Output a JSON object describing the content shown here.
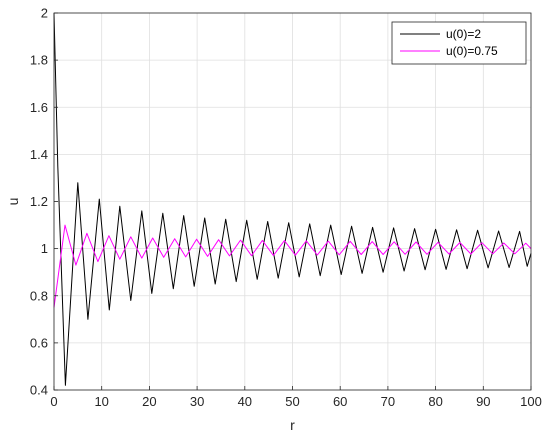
{
  "chart_data": {
    "type": "line",
    "title": "",
    "xlabel": "r",
    "ylabel": "u",
    "xlim": [
      0,
      100
    ],
    "ylim": [
      0.4,
      2
    ],
    "grid": true,
    "legend_position": "top-right",
    "x_ticks": [
      0,
      10,
      20,
      30,
      40,
      50,
      60,
      70,
      80,
      90,
      100
    ],
    "x_tick_labels": [
      "0",
      "10",
      "20",
      "30",
      "40",
      "50",
      "60",
      "70",
      "80",
      "90",
      "100"
    ],
    "y_ticks": [
      0.4,
      0.6,
      0.8,
      1.0,
      1.2,
      1.4,
      1.6,
      1.8,
      2.0
    ],
    "y_tick_labels": [
      "0.4",
      "0.6",
      "0.8",
      "1",
      "1.2",
      "1.4",
      "1.6",
      "1.8",
      "2"
    ],
    "series": [
      {
        "name": "u(0)=2",
        "color": "#000000",
        "x": [
          0,
          0.8,
          2.4,
          5.0,
          7.1,
          9.5,
          11.6,
          13.8,
          16.1,
          18.4,
          20.5,
          22.8,
          25.0,
          27.2,
          29.4,
          31.6,
          33.8,
          36.0,
          38.2,
          40.4,
          42.6,
          44.8,
          47.0,
          49.2,
          51.4,
          53.6,
          55.8,
          58.0,
          60.2,
          62.4,
          64.6,
          66.8,
          69.0,
          71.2,
          73.4,
          75.6,
          77.8,
          80.0,
          82.2,
          84.4,
          86.6,
          88.8,
          91.0,
          93.2,
          95.4,
          97.6,
          99.2,
          100
        ],
        "y": [
          2.0,
          1.35,
          0.42,
          1.28,
          0.7,
          1.21,
          0.74,
          1.18,
          0.78,
          1.16,
          0.81,
          1.15,
          0.83,
          1.14,
          0.84,
          1.13,
          0.85,
          1.125,
          0.86,
          1.12,
          0.87,
          1.115,
          0.875,
          1.11,
          0.88,
          1.105,
          0.885,
          1.1,
          0.89,
          1.095,
          0.895,
          1.09,
          0.9,
          1.088,
          0.905,
          1.085,
          0.91,
          1.082,
          0.912,
          1.08,
          0.915,
          1.078,
          0.918,
          1.075,
          0.92,
          1.073,
          0.925,
          0.98
        ]
      },
      {
        "name": "u(0)=0.75",
        "color": "#ff00ff",
        "x": [
          0,
          2.3,
          4.6,
          6.9,
          9.2,
          11.5,
          13.8,
          16.1,
          18.4,
          20.7,
          23.0,
          25.3,
          27.6,
          29.9,
          32.2,
          34.5,
          36.8,
          39.1,
          41.4,
          43.7,
          46.0,
          48.3,
          50.6,
          52.9,
          55.2,
          57.5,
          59.8,
          62.1,
          64.4,
          66.7,
          69.0,
          71.3,
          73.6,
          75.9,
          78.2,
          80.5,
          82.8,
          85.1,
          87.4,
          89.7,
          92.0,
          94.3,
          96.6,
          98.9,
          100
        ],
        "y": [
          0.75,
          1.1,
          0.93,
          1.065,
          0.945,
          1.055,
          0.955,
          1.05,
          0.96,
          1.045,
          0.963,
          1.042,
          0.965,
          1.04,
          0.967,
          1.038,
          0.969,
          1.036,
          0.97,
          1.035,
          0.971,
          1.034,
          0.972,
          1.033,
          0.973,
          1.032,
          0.974,
          1.031,
          0.975,
          1.03,
          0.975,
          1.029,
          0.976,
          1.028,
          0.976,
          1.027,
          0.977,
          1.026,
          0.977,
          1.025,
          0.978,
          1.024,
          0.978,
          1.023,
          1.0
        ]
      }
    ]
  }
}
